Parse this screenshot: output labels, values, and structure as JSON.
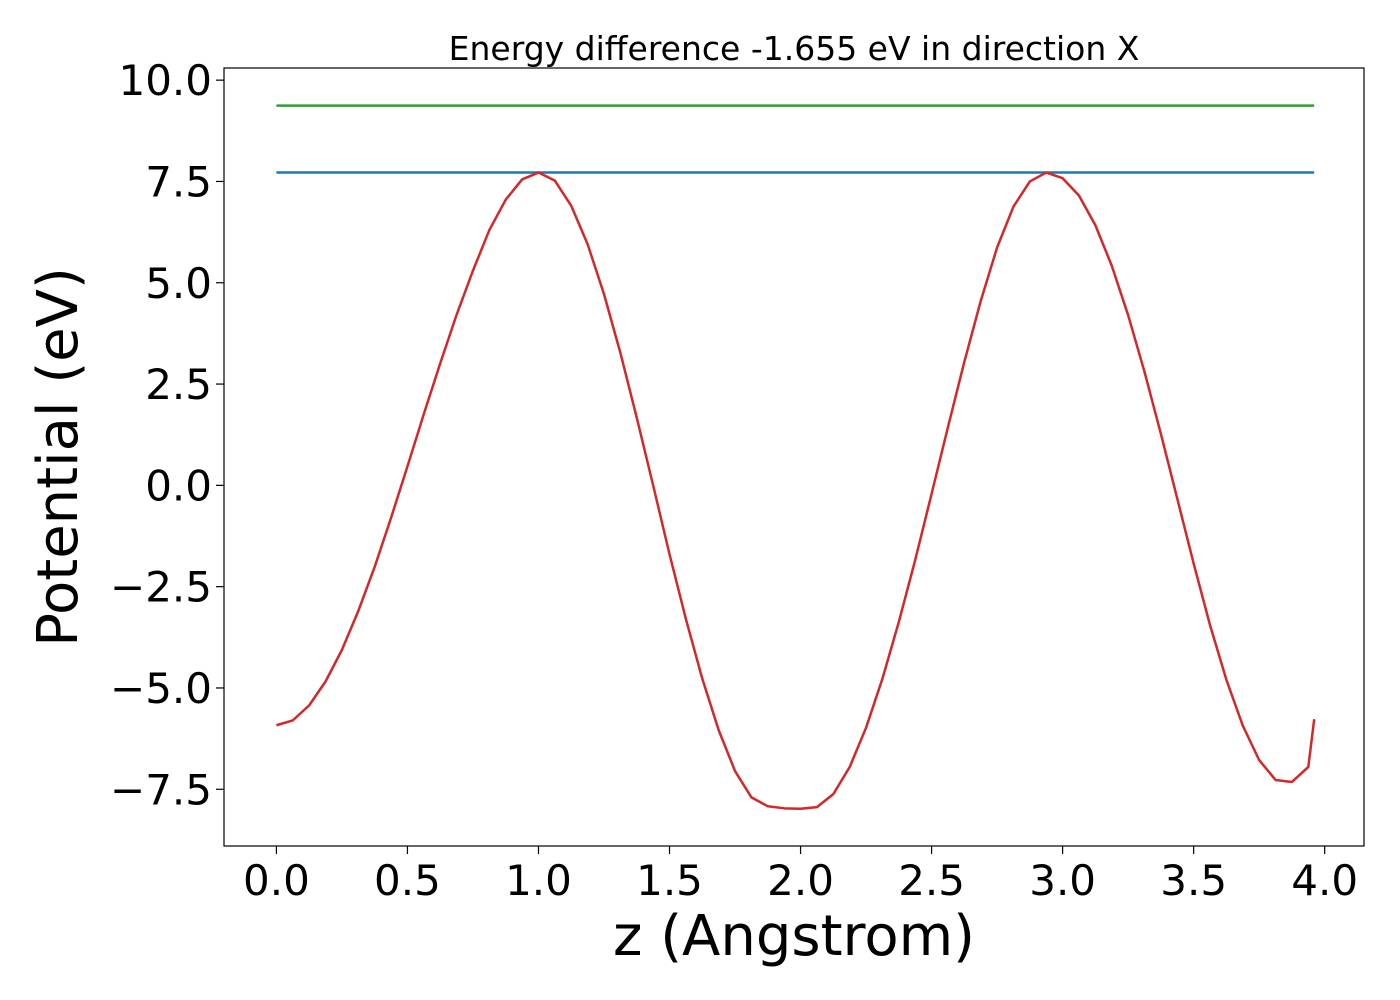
{
  "chart_data": {
    "type": "line",
    "title": "Energy difference -1.655 eV in direction X",
    "xlabel": "z (Angstrom)",
    "ylabel": "Potential (eV)",
    "xlim": [
      -0.2,
      4.15
    ],
    "ylim": [
      -8.9,
      10.3
    ],
    "grid": false,
    "xticks": [
      {
        "value": 0.0,
        "label": "0.0"
      },
      {
        "value": 0.5,
        "label": "0.5"
      },
      {
        "value": 1.0,
        "label": "1.0"
      },
      {
        "value": 1.5,
        "label": "1.5"
      },
      {
        "value": 2.0,
        "label": "2.0"
      },
      {
        "value": 2.5,
        "label": "2.5"
      },
      {
        "value": 3.0,
        "label": "3.0"
      },
      {
        "value": 3.5,
        "label": "3.5"
      },
      {
        "value": 4.0,
        "label": "4.0"
      }
    ],
    "yticks": [
      {
        "value": 10.0,
        "label": "10.0"
      },
      {
        "value": 7.5,
        "label": "7.5"
      },
      {
        "value": 5.0,
        "label": "5.0"
      },
      {
        "value": 2.5,
        "label": "2.5"
      },
      {
        "value": 0.0,
        "label": "0.0"
      },
      {
        "value": -2.5,
        "label": "−2.5"
      },
      {
        "value": -5.0,
        "label": "−5.0"
      },
      {
        "value": -7.5,
        "label": "−7.5"
      }
    ],
    "series": [
      {
        "color": "#2ca02c",
        "x": [
          0.0,
          3.96
        ],
        "y": [
          9.37,
          9.37
        ]
      },
      {
        "color": "#1f77b4",
        "x": [
          0.0,
          3.96
        ],
        "y": [
          7.72,
          7.72
        ]
      },
      {
        "color": "#d62728",
        "x": [
          0.0,
          0.0625,
          0.125,
          0.1875,
          0.25,
          0.3125,
          0.375,
          0.4375,
          0.5,
          0.5625,
          0.625,
          0.6875,
          0.75,
          0.8125,
          0.875,
          0.9375,
          1.0,
          1.0625,
          1.125,
          1.1875,
          1.25,
          1.3125,
          1.375,
          1.4375,
          1.5,
          1.5625,
          1.625,
          1.6875,
          1.75,
          1.8125,
          1.875,
          1.9375,
          2.0,
          2.0625,
          2.125,
          2.1875,
          2.25,
          2.3125,
          2.375,
          2.4375,
          2.5,
          2.5625,
          2.625,
          2.6875,
          2.75,
          2.8125,
          2.875,
          2.9375,
          3.0,
          3.0625,
          3.125,
          3.1875,
          3.25,
          3.3125,
          3.375,
          3.4375,
          3.5,
          3.5625,
          3.625,
          3.6875,
          3.75,
          3.8125,
          3.875,
          3.9375,
          3.96
        ],
        "y": [
          -5.92,
          -5.8,
          -5.43,
          -4.84,
          -4.06,
          -3.1,
          -2.01,
          -0.8,
          0.47,
          1.76,
          3.01,
          4.21,
          5.3,
          6.3,
          7.05,
          7.55,
          7.72,
          7.52,
          6.9,
          5.95,
          4.72,
          3.27,
          1.67,
          0.0,
          -1.7,
          -3.3,
          -4.77,
          -6.04,
          -7.05,
          -7.7,
          -7.92,
          -7.97,
          -7.98,
          -7.94,
          -7.62,
          -6.95,
          -5.98,
          -4.77,
          -3.37,
          -1.84,
          -0.21,
          1.44,
          3.05,
          4.55,
          5.87,
          6.88,
          7.5,
          7.72,
          7.58,
          7.15,
          6.42,
          5.42,
          4.2,
          2.8,
          1.27,
          -0.33,
          -1.93,
          -3.45,
          -4.8,
          -5.93,
          -6.78,
          -7.27,
          -7.32,
          -6.95,
          -5.77
        ]
      }
    ]
  }
}
